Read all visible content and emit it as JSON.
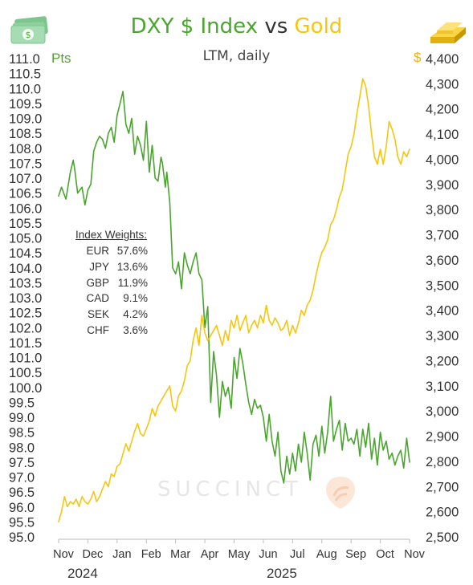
{
  "title": {
    "part1": "DXY $ Index",
    "part2": "vs",
    "part3": "Gold"
  },
  "subtitle": "LTM, daily",
  "left_unit": "Pts",
  "right_unit": "$",
  "index_weights": {
    "title": "Index Weights:",
    "rows": [
      {
        "currency": "EUR",
        "weight": "57.6%"
      },
      {
        "currency": "JPY",
        "weight": "13.6%"
      },
      {
        "currency": "GBP",
        "weight": "11.9%"
      },
      {
        "currency": "CAD",
        "weight": "9.1%"
      },
      {
        "currency": "SEK",
        "weight": "4.2%"
      },
      {
        "currency": "CHF",
        "weight": "3.6%"
      }
    ]
  },
  "years": [
    "2024",
    "2025"
  ],
  "watermark": "SUCCINCT",
  "icons": {
    "left": "money-icon",
    "right": "gold-bar-icon"
  },
  "colors": {
    "dxy": "#4aa52e",
    "gold": "#f6c60f",
    "text": "#333333"
  },
  "chart_data": {
    "type": "line",
    "title": "DXY $ Index vs Gold",
    "subtitle": "LTM, daily",
    "x_unit": "month",
    "x_ticks": [
      "Nov",
      "Dec",
      "Jan",
      "Feb",
      "Mar",
      "Apr",
      "May",
      "Jun",
      "Jul",
      "Aug",
      "Sep",
      "Oct",
      "Nov"
    ],
    "y_left": {
      "label": "Pts",
      "min": 95.0,
      "max": 111.0,
      "step": 0.5,
      "ticks": [
        "95.0",
        "95.5",
        "96.0",
        "96.5",
        "97.0",
        "97.5",
        "98.0",
        "98.5",
        "99.0",
        "99.5",
        "100.0",
        "100.5",
        "101.0",
        "101.5",
        "102.0",
        "102.5",
        "103.0",
        "103.5",
        "104.0",
        "104.5",
        "105.0",
        "105.5",
        "106.0",
        "106.5",
        "107.0",
        "107.5",
        "108.0",
        "108.5",
        "109.0",
        "109.5",
        "110.0",
        "110.5",
        "111.0"
      ]
    },
    "y_right": {
      "label": "$",
      "min": 2500,
      "max": 4400,
      "step": 100,
      "ticks": [
        "2,500",
        "2,600",
        "2,700",
        "2,800",
        "2,900",
        "3,000",
        "3,100",
        "3,200",
        "3,300",
        "3,400",
        "3,500",
        "3,600",
        "3,700",
        "3,800",
        "3,900",
        "4,000",
        "4,100",
        "4,200",
        "4,300",
        "4,400"
      ]
    },
    "series": [
      {
        "name": "DXY $ Index",
        "axis": "left",
        "x": [
          0.0,
          0.1,
          0.25,
          0.4,
          0.5,
          0.55,
          0.65,
          0.8,
          0.9,
          1.0,
          1.1,
          1.2,
          1.3,
          1.4,
          1.5,
          1.6,
          1.7,
          1.8,
          1.9,
          2.0,
          2.1,
          2.2,
          2.3,
          2.4,
          2.5,
          2.6,
          2.7,
          2.8,
          2.9,
          3.0,
          3.1,
          3.2,
          3.3,
          3.4,
          3.5,
          3.55,
          3.65,
          3.7,
          3.8,
          3.9,
          4.0,
          4.1,
          4.2,
          4.3,
          4.4,
          4.5,
          4.6,
          4.7,
          4.8,
          4.9,
          5.0,
          5.1,
          5.2,
          5.3,
          5.4,
          5.5,
          5.6,
          5.7,
          5.8,
          5.9,
          6.0,
          6.1,
          6.2,
          6.3,
          6.4,
          6.5,
          6.6,
          6.7,
          6.8,
          6.9,
          7.0,
          7.1,
          7.2,
          7.3,
          7.4,
          7.5,
          7.6,
          7.7,
          7.8,
          7.9,
          8.0,
          8.1,
          8.2,
          8.3,
          8.4,
          8.5,
          8.6,
          8.7,
          8.8,
          8.9,
          9.0,
          9.1,
          9.2,
          9.3,
          9.4,
          9.5,
          9.6,
          9.7,
          9.8,
          9.9,
          10.0,
          10.1,
          10.2,
          10.3,
          10.4,
          10.5,
          10.6,
          10.7,
          10.8,
          10.9,
          11.0,
          11.1,
          11.2,
          11.3,
          11.4,
          11.5,
          11.6,
          11.7,
          11.8,
          11.9,
          12.0
        ],
        "y": [
          106.4,
          106.7,
          106.3,
          107.2,
          107.6,
          107.3,
          106.5,
          106.7,
          106.1,
          106.6,
          106.8,
          107.9,
          108.2,
          108.4,
          108.3,
          108.0,
          108.5,
          108.7,
          108.2,
          109.1,
          109.5,
          109.9,
          108.8,
          108.5,
          109.0,
          107.8,
          108.4,
          108.1,
          107.6,
          108.9,
          107.2,
          108.1,
          107.0,
          106.9,
          107.7,
          107.5,
          106.7,
          107.2,
          106.2,
          104.0,
          103.8,
          104.2,
          103.3,
          104.5,
          104.1,
          103.8,
          104.2,
          104.5,
          103.8,
          103.6,
          102.0,
          102.7,
          99.5,
          101.2,
          100.4,
          99.0,
          100.2,
          99.7,
          100.0,
          99.3,
          101.0,
          100.3,
          101.3,
          100.8,
          100.1,
          99.5,
          99.1,
          99.6,
          99.3,
          99.4,
          99.0,
          98.2,
          99.1,
          98.2,
          97.7,
          98.5,
          97.2,
          96.8,
          97.7,
          97.1,
          97.8,
          97.2,
          98.1,
          97.5,
          98.5,
          97.8,
          96.9,
          98.1,
          98.4,
          97.7,
          98.7,
          97.8,
          98.5,
          99.7,
          98.2,
          98.6,
          98.9,
          97.9,
          98.8,
          98.2,
          98.3,
          98.1,
          98.6,
          97.7,
          98.6,
          98.0,
          98.8,
          97.6,
          98.3,
          97.4,
          98.5,
          97.9,
          98.2,
          97.6,
          97.8,
          97.4,
          97.7,
          97.9,
          97.3,
          98.3,
          97.5
        ],
        "color": "#4aa52e"
      },
      {
        "name": "Gold",
        "axis": "right",
        "x": [
          0.0,
          0.1,
          0.2,
          0.3,
          0.4,
          0.5,
          0.6,
          0.7,
          0.8,
          0.9,
          1.0,
          1.1,
          1.2,
          1.3,
          1.4,
          1.5,
          1.6,
          1.7,
          1.8,
          1.9,
          2.0,
          2.1,
          2.2,
          2.3,
          2.4,
          2.5,
          2.6,
          2.7,
          2.8,
          2.9,
          3.0,
          3.1,
          3.2,
          3.3,
          3.4,
          3.5,
          3.6,
          3.7,
          3.8,
          3.9,
          4.0,
          4.1,
          4.2,
          4.3,
          4.4,
          4.5,
          4.6,
          4.7,
          4.8,
          4.9,
          5.0,
          5.1,
          5.2,
          5.3,
          5.4,
          5.5,
          5.6,
          5.7,
          5.8,
          5.9,
          6.0,
          6.1,
          6.2,
          6.3,
          6.4,
          6.5,
          6.6,
          6.7,
          6.8,
          6.9,
          7.0,
          7.1,
          7.2,
          7.3,
          7.4,
          7.5,
          7.6,
          7.7,
          7.8,
          7.9,
          8.0,
          8.1,
          8.2,
          8.3,
          8.4,
          8.5,
          8.6,
          8.7,
          8.8,
          8.9,
          9.0,
          9.1,
          9.2,
          9.3,
          9.4,
          9.5,
          9.6,
          9.7,
          9.8,
          9.9,
          10.0,
          10.1,
          10.2,
          10.3,
          10.4,
          10.5,
          10.6,
          10.7,
          10.8,
          10.9,
          11.0,
          11.1,
          11.2,
          11.3,
          11.4,
          11.5,
          11.6,
          11.7,
          11.8,
          11.9,
          12.0
        ],
        "y": [
          2560,
          2600,
          2660,
          2620,
          2640,
          2630,
          2650,
          2620,
          2660,
          2640,
          2630,
          2650,
          2680,
          2640,
          2660,
          2690,
          2720,
          2700,
          2750,
          2740,
          2780,
          2790,
          2830,
          2870,
          2840,
          2880,
          2920,
          2950,
          2910,
          2900,
          2930,
          2960,
          3010,
          2980,
          3020,
          3040,
          3060,
          3080,
          3100,
          3020,
          3000,
          3060,
          3080,
          3120,
          3180,
          3200,
          3280,
          3330,
          3260,
          3380,
          3310,
          3280,
          3300,
          3320,
          3340,
          3300,
          3260,
          3320,
          3280,
          3360,
          3330,
          3380,
          3320,
          3350,
          3380,
          3310,
          3340,
          3360,
          3330,
          3380,
          3350,
          3420,
          3360,
          3340,
          3370,
          3350,
          3320,
          3330,
          3360,
          3300,
          3340,
          3310,
          3350,
          3400,
          3380,
          3420,
          3440,
          3480,
          3540,
          3590,
          3630,
          3650,
          3680,
          3740,
          3760,
          3800,
          3850,
          3880,
          3950,
          4020,
          4050,
          4100,
          4180,
          4250,
          4320,
          4290,
          4210,
          4100,
          4010,
          3980,
          4040,
          3980,
          4050,
          4150,
          4120,
          4080,
          4010,
          3980,
          4030,
          4010,
          4040
        ],
        "color": "#f6c60f"
      }
    ],
    "legend": "none",
    "grid": false
  }
}
